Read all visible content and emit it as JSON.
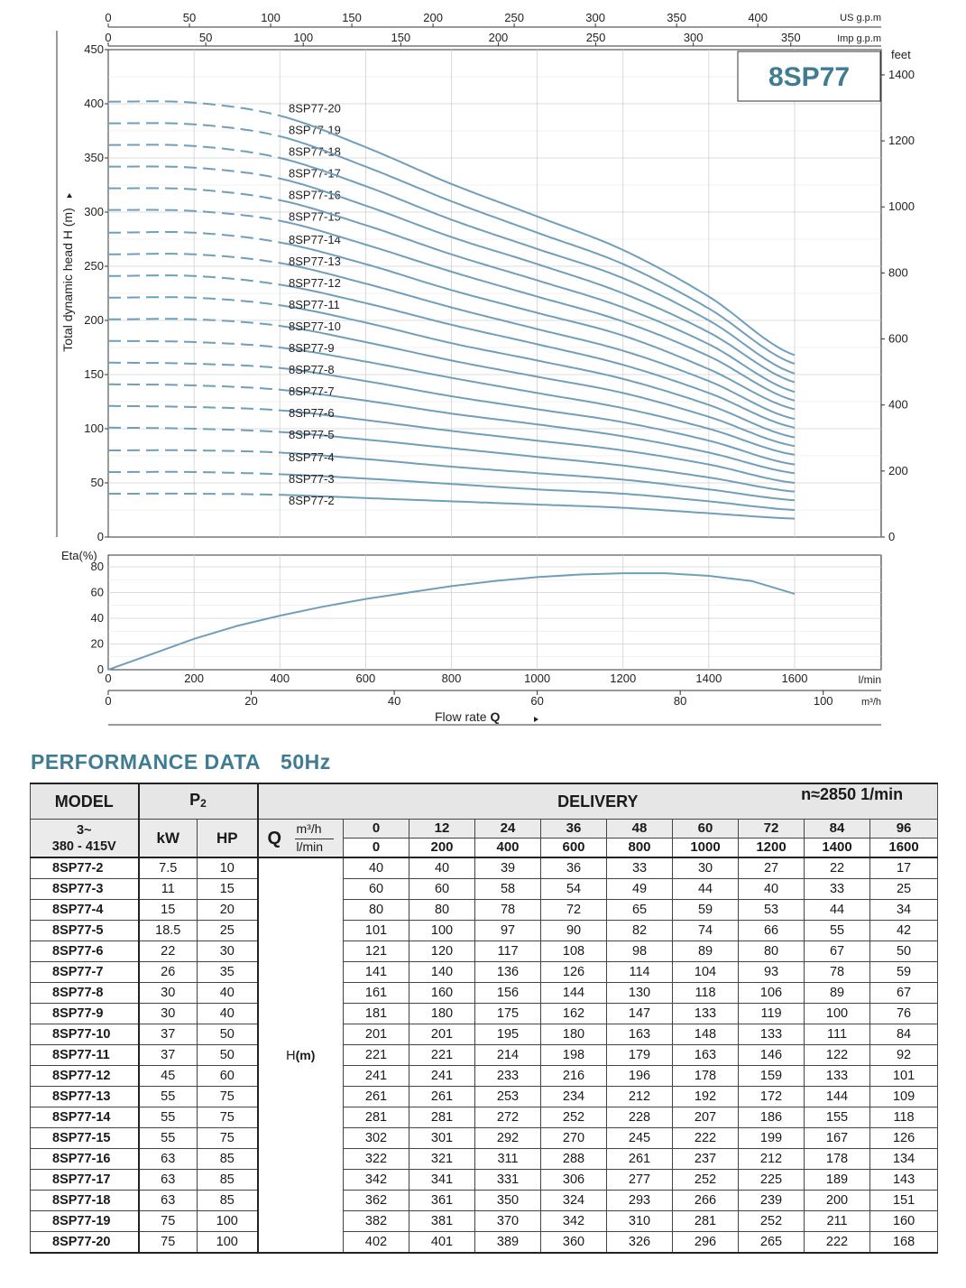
{
  "chart_data": [
    {
      "type": "line",
      "title": "8SP77",
      "ylabel": "Total dynamic head H (m)",
      "ylim": [
        0,
        450
      ],
      "yticks": [
        0,
        50,
        100,
        150,
        200,
        250,
        300,
        350,
        400,
        450
      ],
      "right_axis": {
        "label": "feet",
        "ticks": [
          0,
          200,
          400,
          600,
          800,
          1000,
          1200,
          1400
        ]
      },
      "top_axes": [
        {
          "unit": "US g.p.m",
          "ticks": [
            0,
            50,
            100,
            150,
            200,
            250,
            300,
            350,
            400
          ]
        },
        {
          "unit": "Imp g.p.m",
          "ticks": [
            0,
            50,
            100,
            150,
            200,
            250,
            300,
            350
          ]
        }
      ],
      "x": [
        0,
        200,
        400,
        600,
        800,
        1000,
        1200,
        1400,
        1600
      ],
      "xunit": "l/min",
      "dashed_below_x": 400,
      "grid": true,
      "series": [
        {
          "name": "8SP77-2",
          "values": [
            40,
            40,
            39,
            36,
            33,
            30,
            27,
            22,
            17
          ]
        },
        {
          "name": "8SP77-3",
          "values": [
            60,
            60,
            58,
            54,
            49,
            44,
            40,
            33,
            25
          ]
        },
        {
          "name": "8SP77-4",
          "values": [
            80,
            80,
            78,
            72,
            65,
            59,
            53,
            44,
            34
          ]
        },
        {
          "name": "8SP77-5",
          "values": [
            101,
            100,
            97,
            90,
            82,
            74,
            66,
            55,
            42
          ]
        },
        {
          "name": "8SP77-6",
          "values": [
            121,
            120,
            117,
            108,
            98,
            89,
            80,
            67,
            50
          ]
        },
        {
          "name": "8SP77-7",
          "values": [
            141,
            140,
            136,
            126,
            114,
            104,
            93,
            78,
            59
          ]
        },
        {
          "name": "8SP77-8",
          "values": [
            161,
            160,
            156,
            144,
            130,
            118,
            106,
            89,
            67
          ]
        },
        {
          "name": "8SP77-9",
          "values": [
            181,
            180,
            175,
            162,
            147,
            133,
            119,
            100,
            76
          ]
        },
        {
          "name": "8SP77-10",
          "values": [
            201,
            201,
            195,
            180,
            163,
            148,
            133,
            111,
            84
          ]
        },
        {
          "name": "8SP77-11",
          "values": [
            221,
            221,
            214,
            198,
            179,
            163,
            146,
            122,
            92
          ]
        },
        {
          "name": "8SP77-12",
          "values": [
            241,
            241,
            233,
            216,
            196,
            178,
            159,
            133,
            101
          ]
        },
        {
          "name": "8SP77-13",
          "values": [
            261,
            261,
            253,
            234,
            212,
            192,
            172,
            144,
            109
          ]
        },
        {
          "name": "8SP77-14",
          "values": [
            281,
            281,
            272,
            252,
            228,
            207,
            186,
            155,
            118
          ]
        },
        {
          "name": "8SP77-15",
          "values": [
            302,
            301,
            292,
            270,
            245,
            222,
            199,
            167,
            126
          ]
        },
        {
          "name": "8SP77-16",
          "values": [
            322,
            321,
            311,
            288,
            261,
            237,
            212,
            178,
            134
          ]
        },
        {
          "name": "8SP77-17",
          "values": [
            342,
            341,
            331,
            306,
            277,
            252,
            225,
            189,
            143
          ]
        },
        {
          "name": "8SP77-18",
          "values": [
            362,
            361,
            350,
            324,
            293,
            266,
            239,
            200,
            151
          ]
        },
        {
          "name": "8SP77-19",
          "values": [
            382,
            381,
            370,
            342,
            310,
            281,
            252,
            211,
            160
          ]
        },
        {
          "name": "8SP77-20",
          "values": [
            402,
            401,
            389,
            360,
            326,
            296,
            265,
            222,
            168
          ]
        }
      ]
    },
    {
      "type": "line",
      "ylabel": "Eta(%)",
      "ylim": [
        0,
        80
      ],
      "yticks": [
        0,
        20,
        40,
        60,
        80
      ],
      "xlim": [
        0,
        1600
      ],
      "xticks": [
        0,
        200,
        400,
        600,
        800,
        1000,
        1200,
        1400,
        1600
      ],
      "xunit": "l/min",
      "second_x_axis": {
        "unit": "m³/h",
        "ticks": [
          0,
          20,
          40,
          60,
          80,
          100
        ]
      },
      "xlabel": "Flow rate",
      "xlabel_symbol": "Q",
      "grid": true,
      "series": [
        {
          "x": [
            0,
            100,
            200,
            300,
            400,
            500,
            600,
            700,
            800,
            900,
            1000,
            1100,
            1200,
            1300,
            1400,
            1500,
            1600
          ],
          "values": [
            0,
            12,
            24,
            34,
            42,
            49,
            55,
            60,
            65,
            69,
            72,
            74,
            75,
            75,
            73,
            69,
            59
          ]
        }
      ]
    }
  ],
  "table": {
    "title": "PERFORMANCE  DATA",
    "frequency": "50Hz",
    "model_header": "MODEL",
    "p2_header": "P",
    "p2_sub": "2",
    "delivery_header": "DELIVERY",
    "rpm": "n≈2850 1/min",
    "voltage_line1": "3~",
    "voltage_line2": "380 - 415V",
    "kw_header": "kW",
    "hp_header": "HP",
    "q_letter": "Q",
    "q_unit_m3h": "m³/h",
    "q_unit_lmin": "l/min",
    "flow_m3h": [
      "0",
      "12",
      "24",
      "36",
      "48",
      "60",
      "72",
      "84",
      "96"
    ],
    "flow_lmin": [
      "0",
      "200",
      "400",
      "600",
      "800",
      "1000",
      "1200",
      "1400",
      "1600"
    ],
    "head_label": "H",
    "head_unit": "(m)",
    "rows": [
      {
        "model": "8SP77-2",
        "kw": "7.5",
        "hp": "10"
      },
      {
        "model": "8SP77-3",
        "kw": "11",
        "hp": "15"
      },
      {
        "model": "8SP77-4",
        "kw": "15",
        "hp": "20"
      },
      {
        "model": "8SP77-5",
        "kw": "18.5",
        "hp": "25"
      },
      {
        "model": "8SP77-6",
        "kw": "22",
        "hp": "30"
      },
      {
        "model": "8SP77-7",
        "kw": "26",
        "hp": "35"
      },
      {
        "model": "8SP77-8",
        "kw": "30",
        "hp": "40"
      },
      {
        "model": "8SP77-9",
        "kw": "30",
        "hp": "40"
      },
      {
        "model": "8SP77-10",
        "kw": "37",
        "hp": "50"
      },
      {
        "model": "8SP77-11",
        "kw": "37",
        "hp": "50"
      },
      {
        "model": "8SP77-12",
        "kw": "45",
        "hp": "60"
      },
      {
        "model": "8SP77-13",
        "kw": "55",
        "hp": "75"
      },
      {
        "model": "8SP77-14",
        "kw": "55",
        "hp": "75"
      },
      {
        "model": "8SP77-15",
        "kw": "55",
        "hp": "75"
      },
      {
        "model": "8SP77-16",
        "kw": "63",
        "hp": "85"
      },
      {
        "model": "8SP77-17",
        "kw": "63",
        "hp": "85"
      },
      {
        "model": "8SP77-18",
        "kw": "63",
        "hp": "85"
      },
      {
        "model": "8SP77-19",
        "kw": "75",
        "hp": "100"
      },
      {
        "model": "8SP77-20",
        "kw": "75",
        "hp": "100"
      }
    ]
  },
  "colors": {
    "curve": "#6f9fba",
    "title_model": "#3f7c93",
    "title_number": "#7a6ab0",
    "grid": "#d0d0d0",
    "axis": "#333333"
  }
}
